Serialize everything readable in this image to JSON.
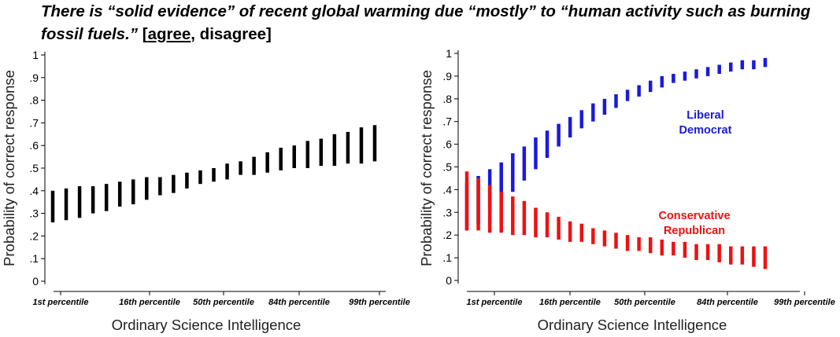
{
  "title": {
    "question": "There is “solid evidence” of recent global warming due “mostly” to “human activity such as burning fossil fuels.”",
    "open_bracket": " [",
    "agree": "agree",
    "rest": ", disagree]"
  },
  "chart_data": [
    {
      "type": "errorbar",
      "ylabel": "Probability of correct response",
      "xlabel": "Ordinary Science Intelligence",
      "ylim": [
        0,
        1
      ],
      "yticks": [
        "0",
        ".1",
        ".2",
        ".3",
        ".4",
        ".5",
        ".6",
        ".7",
        ".8",
        ".9",
        "1"
      ],
      "xtick_labels": [
        "1st percentile",
        "16th percentile",
        "50th percentile",
        "84th percentile",
        "99th percentile"
      ],
      "grid": false,
      "series": [
        {
          "color": "#000000",
          "ranges": [
            [
              0.26,
              0.4
            ],
            [
              0.27,
              0.41
            ],
            [
              0.28,
              0.42
            ],
            [
              0.3,
              0.42
            ],
            [
              0.31,
              0.43
            ],
            [
              0.33,
              0.44
            ],
            [
              0.34,
              0.45
            ],
            [
              0.36,
              0.46
            ],
            [
              0.38,
              0.46
            ],
            [
              0.39,
              0.47
            ],
            [
              0.41,
              0.48
            ],
            [
              0.43,
              0.49
            ],
            [
              0.44,
              0.5
            ],
            [
              0.45,
              0.52
            ],
            [
              0.47,
              0.53
            ],
            [
              0.47,
              0.55
            ],
            [
              0.48,
              0.57
            ],
            [
              0.49,
              0.59
            ],
            [
              0.5,
              0.6
            ],
            [
              0.5,
              0.62
            ],
            [
              0.51,
              0.63
            ],
            [
              0.51,
              0.65
            ],
            [
              0.52,
              0.66
            ],
            [
              0.52,
              0.68
            ],
            [
              0.53,
              0.69
            ]
          ]
        }
      ]
    },
    {
      "type": "errorbar",
      "ylabel": "Probability of correct response",
      "xlabel": "Ordinary Science Intelligence",
      "ylim": [
        0,
        1
      ],
      "yticks": [
        "0",
        ".1",
        ".2",
        ".3",
        ".4",
        ".5",
        ".6",
        ".7",
        ".8",
        ".9",
        "1"
      ],
      "xtick_labels": [
        "1st percentile",
        "16th percentile",
        "50th percentile",
        "84th percentile",
        "99th percentile"
      ],
      "grid": false,
      "series": [
        {
          "name": "Liberal Democrat",
          "label_lines": [
            "Liberal",
            "Democrat"
          ],
          "color": "#1a1adc",
          "ranges": [
            [
              0.22,
              0.43
            ],
            [
              0.25,
              0.46
            ],
            [
              0.3,
              0.49
            ],
            [
              0.34,
              0.52
            ],
            [
              0.39,
              0.56
            ],
            [
              0.44,
              0.59
            ],
            [
              0.49,
              0.63
            ],
            [
              0.54,
              0.66
            ],
            [
              0.59,
              0.69
            ],
            [
              0.63,
              0.72
            ],
            [
              0.67,
              0.75
            ],
            [
              0.7,
              0.78
            ],
            [
              0.73,
              0.8
            ],
            [
              0.76,
              0.82
            ],
            [
              0.79,
              0.84
            ],
            [
              0.81,
              0.86
            ],
            [
              0.83,
              0.88
            ],
            [
              0.85,
              0.9
            ],
            [
              0.87,
              0.91
            ],
            [
              0.88,
              0.92
            ],
            [
              0.89,
              0.93
            ],
            [
              0.9,
              0.94
            ],
            [
              0.91,
              0.95
            ],
            [
              0.92,
              0.96
            ],
            [
              0.93,
              0.97
            ],
            [
              0.93,
              0.97
            ],
            [
              0.94,
              0.98
            ]
          ]
        },
        {
          "name": "Conservative Republican",
          "label_lines": [
            "Conservative",
            "Republican"
          ],
          "color": "#ee1111",
          "ranges": [
            [
              0.22,
              0.48
            ],
            [
              0.22,
              0.45
            ],
            [
              0.21,
              0.42
            ],
            [
              0.21,
              0.39
            ],
            [
              0.2,
              0.37
            ],
            [
              0.2,
              0.35
            ],
            [
              0.19,
              0.32
            ],
            [
              0.19,
              0.3
            ],
            [
              0.18,
              0.28
            ],
            [
              0.17,
              0.26
            ],
            [
              0.17,
              0.25
            ],
            [
              0.16,
              0.23
            ],
            [
              0.15,
              0.22
            ],
            [
              0.14,
              0.21
            ],
            [
              0.13,
              0.2
            ],
            [
              0.13,
              0.19
            ],
            [
              0.12,
              0.19
            ],
            [
              0.11,
              0.18
            ],
            [
              0.11,
              0.17
            ],
            [
              0.1,
              0.17
            ],
            [
              0.09,
              0.16
            ],
            [
              0.09,
              0.16
            ],
            [
              0.08,
              0.16
            ],
            [
              0.07,
              0.15
            ],
            [
              0.07,
              0.15
            ],
            [
              0.06,
              0.15
            ],
            [
              0.05,
              0.15
            ]
          ]
        }
      ]
    }
  ]
}
